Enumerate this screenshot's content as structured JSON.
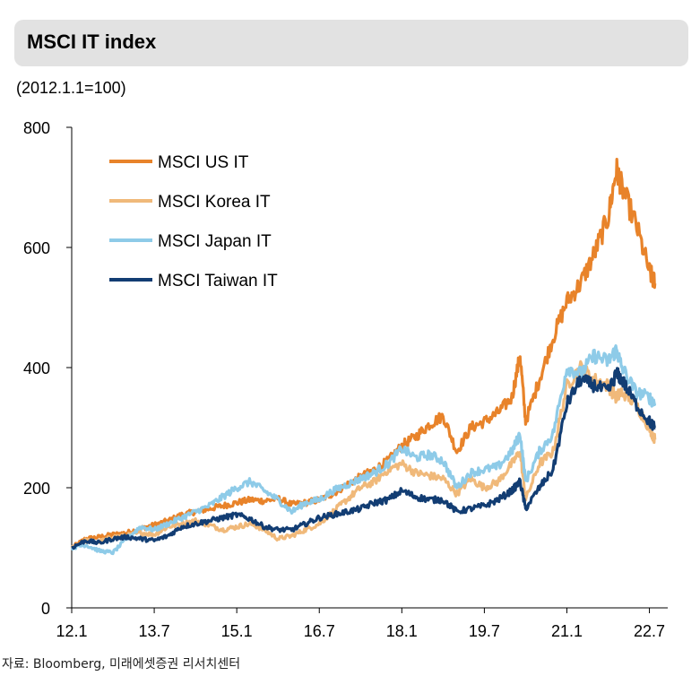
{
  "header": {
    "title": "MSCI IT index"
  },
  "unit_note": "(2012.1.1=100)",
  "source": "자료: Bloomberg, 미래에셋증권 리서치센터",
  "chart_data": {
    "type": "line",
    "title": "MSCI IT index",
    "ylim": [
      0,
      800
    ],
    "xlim": [
      2012.0,
      2022.833
    ],
    "yticks": [
      0,
      200,
      400,
      600,
      800
    ],
    "xtick_labels": [
      "12.1",
      "13.7",
      "15.1",
      "16.7",
      "18.1",
      "19.7",
      "21.1",
      "22.7"
    ],
    "xtick_values": [
      2012.0,
      2013.5,
      2015.0,
      2016.5,
      2018.0,
      2019.5,
      2021.0,
      2022.5
    ],
    "legend_position": "top-left",
    "grid": false,
    "series": [
      {
        "name": "MSCI US IT",
        "color": "#e8832a",
        "x": [
          2012.0,
          2012.25,
          2012.5,
          2012.75,
          2013.0,
          2013.25,
          2013.5,
          2013.75,
          2014.0,
          2014.25,
          2014.5,
          2014.75,
          2015.0,
          2015.25,
          2015.5,
          2015.75,
          2016.0,
          2016.25,
          2016.5,
          2016.75,
          2017.0,
          2017.25,
          2017.5,
          2017.75,
          2018.0,
          2018.25,
          2018.5,
          2018.75,
          2019.0,
          2019.25,
          2019.5,
          2019.75,
          2020.0,
          2020.15,
          2020.25,
          2020.5,
          2020.75,
          2021.0,
          2021.25,
          2021.5,
          2021.75,
          2021.9,
          2022.0,
          2022.25,
          2022.5,
          2022.6
        ],
        "y": [
          100,
          115,
          118,
          122,
          125,
          132,
          138,
          145,
          155,
          160,
          165,
          170,
          175,
          180,
          178,
          182,
          172,
          175,
          180,
          190,
          205,
          218,
          230,
          245,
          270,
          285,
          305,
          320,
          260,
          300,
          310,
          325,
          350,
          420,
          310,
          380,
          450,
          510,
          540,
          590,
          650,
          730,
          700,
          640,
          560,
          540
        ]
      },
      {
        "name": "MSCI Korea IT",
        "color": "#f0b97a",
        "x": [
          2012.0,
          2012.25,
          2012.5,
          2012.75,
          2013.0,
          2013.25,
          2013.5,
          2013.75,
          2014.0,
          2014.25,
          2014.5,
          2014.75,
          2015.0,
          2015.25,
          2015.5,
          2015.75,
          2016.0,
          2016.25,
          2016.5,
          2016.75,
          2017.0,
          2017.25,
          2017.5,
          2017.75,
          2018.0,
          2018.25,
          2018.5,
          2018.75,
          2019.0,
          2019.25,
          2019.5,
          2019.75,
          2020.0,
          2020.15,
          2020.25,
          2020.5,
          2020.75,
          2021.0,
          2021.25,
          2021.5,
          2021.75,
          2021.9,
          2022.0,
          2022.25,
          2022.5,
          2022.6
        ],
        "y": [
          100,
          112,
          110,
          118,
          120,
          125,
          122,
          135,
          140,
          145,
          138,
          130,
          135,
          140,
          130,
          115,
          120,
          130,
          140,
          160,
          180,
          200,
          210,
          230,
          240,
          225,
          220,
          215,
          190,
          215,
          200,
          210,
          240,
          260,
          180,
          240,
          260,
          370,
          400,
          380,
          370,
          350,
          360,
          340,
          300,
          280
        ]
      },
      {
        "name": "MSCI Japan IT",
        "color": "#8ecbe8",
        "x": [
          2012.0,
          2012.25,
          2012.5,
          2012.75,
          2013.0,
          2013.25,
          2013.5,
          2013.75,
          2014.0,
          2014.25,
          2014.5,
          2014.75,
          2015.0,
          2015.25,
          2015.5,
          2015.75,
          2016.0,
          2016.25,
          2016.5,
          2016.75,
          2017.0,
          2017.25,
          2017.5,
          2017.75,
          2018.0,
          2018.25,
          2018.5,
          2018.75,
          2019.0,
          2019.25,
          2019.5,
          2019.75,
          2020.0,
          2020.15,
          2020.25,
          2020.5,
          2020.75,
          2021.0,
          2021.25,
          2021.5,
          2021.75,
          2021.9,
          2022.0,
          2022.25,
          2022.5,
          2022.6
        ],
        "y": [
          100,
          105,
          95,
          92,
          115,
          135,
          130,
          140,
          150,
          160,
          170,
          185,
          200,
          210,
          195,
          180,
          160,
          175,
          180,
          195,
          205,
          215,
          225,
          240,
          265,
          250,
          255,
          245,
          200,
          225,
          230,
          235,
          260,
          290,
          210,
          260,
          290,
          400,
          390,
          420,
          410,
          430,
          400,
          360,
          350,
          340
        ]
      },
      {
        "name": "MSCI Taiwan IT",
        "color": "#123d73",
        "x": [
          2012.0,
          2012.25,
          2012.5,
          2012.75,
          2013.0,
          2013.25,
          2013.5,
          2013.75,
          2014.0,
          2014.25,
          2014.5,
          2014.75,
          2015.0,
          2015.25,
          2015.5,
          2015.75,
          2016.0,
          2016.25,
          2016.5,
          2016.75,
          2017.0,
          2017.25,
          2017.5,
          2017.75,
          2018.0,
          2018.25,
          2018.5,
          2018.75,
          2019.0,
          2019.25,
          2019.5,
          2019.75,
          2020.0,
          2020.15,
          2020.25,
          2020.5,
          2020.75,
          2021.0,
          2021.25,
          2021.5,
          2021.75,
          2021.9,
          2022.0,
          2022.25,
          2022.5,
          2022.6
        ],
        "y": [
          100,
          112,
          108,
          115,
          118,
          115,
          112,
          120,
          135,
          140,
          145,
          150,
          155,
          148,
          135,
          130,
          130,
          140,
          150,
          155,
          160,
          165,
          175,
          180,
          195,
          185,
          180,
          180,
          160,
          165,
          170,
          180,
          195,
          210,
          165,
          200,
          230,
          340,
          380,
          370,
          360,
          390,
          380,
          340,
          310,
          300
        ]
      }
    ]
  }
}
